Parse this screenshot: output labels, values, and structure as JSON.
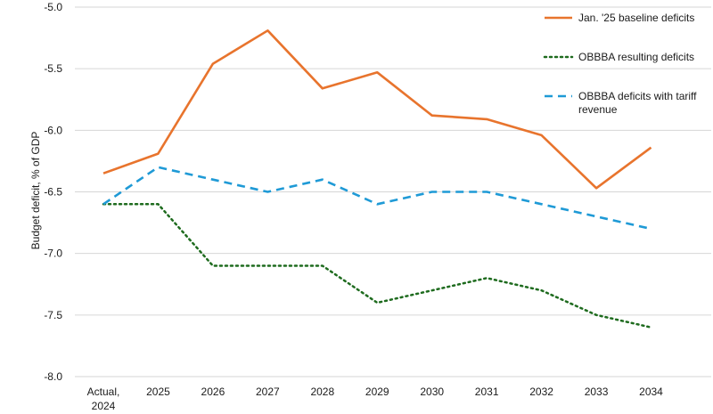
{
  "chart_data": {
    "type": "line",
    "ylabel": "Budget deficit, % of GDP",
    "ylim": [
      -8.0,
      -5.0
    ],
    "yticks": [
      -5.0,
      -5.5,
      -6.0,
      -6.5,
      -7.0,
      -7.5,
      -8.0
    ],
    "ytick_labels": [
      "-5.0",
      "-5.5",
      "-6.0",
      "-6.5",
      "-7.0",
      "-7.5",
      "-8.0"
    ],
    "categories": [
      [
        "Actual,",
        "2024"
      ],
      [
        "2025"
      ],
      [
        "2026"
      ],
      [
        "2027"
      ],
      [
        "2028"
      ],
      [
        "2029"
      ],
      [
        "2030"
      ],
      [
        "2031"
      ],
      [
        "2032"
      ],
      [
        "2033"
      ],
      [
        "2034"
      ]
    ],
    "grid": "horizontal",
    "legend_position": "top-right",
    "series": [
      {
        "name": "Jan. '25 baseline deficits",
        "legend_lines": [
          "Jan. '25 baseline deficits"
        ],
        "style": "solid",
        "color": "#e8742d",
        "values": [
          -6.35,
          -6.19,
          -5.46,
          -5.19,
          -5.66,
          -5.53,
          -5.88,
          -5.91,
          -6.04,
          -6.47,
          -6.14
        ]
      },
      {
        "name": "OBBBA resulting deficits",
        "legend_lines": [
          "OBBBA resulting deficits"
        ],
        "style": "dotted",
        "color": "#1e6b1e",
        "values": [
          -6.6,
          -6.6,
          -7.1,
          -7.1,
          -7.1,
          -7.4,
          -7.3,
          -7.2,
          -7.3,
          -7.5,
          -7.6
        ]
      },
      {
        "name": "OBBBA deficits with tariff revenue",
        "legend_lines": [
          "OBBBA deficits with tariff",
          "revenue"
        ],
        "style": "dashed",
        "color": "#1f9ad6",
        "values": [
          -6.6,
          -6.3,
          -6.4,
          -6.5,
          -6.4,
          -6.6,
          -6.5,
          -6.5,
          -6.6,
          -6.7,
          -6.8
        ]
      }
    ]
  }
}
